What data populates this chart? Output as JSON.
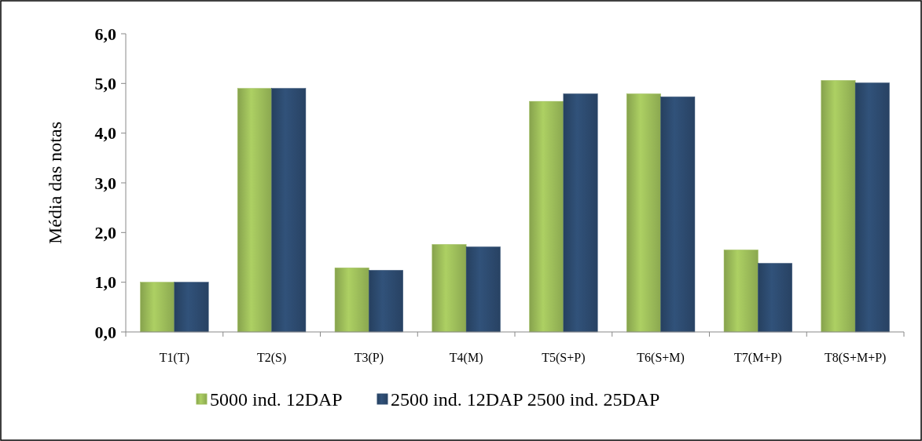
{
  "chart_data": {
    "type": "bar",
    "ylabel": "Média das notas",
    "categories": [
      "T1(T)",
      "T2(S)",
      "T3(P)",
      "T4(M)",
      "T5(S+P)",
      "T6(S+M)",
      "T7(M+P)",
      "T8(S+M+P)"
    ],
    "series": [
      {
        "name": "5000 ind. 12DAP",
        "color": "#9bbb59",
        "values": [
          1.0,
          4.9,
          1.29,
          1.76,
          4.64,
          4.79,
          1.65,
          5.06
        ]
      },
      {
        "name": "2500 ind. 12DAP 2500 ind. 25DAP",
        "color": "#2c4a6e",
        "values": [
          1.0,
          4.9,
          1.24,
          1.71,
          4.79,
          4.73,
          1.38,
          5.01
        ]
      }
    ],
    "ylim": [
      0,
      6
    ],
    "yticks": [
      {
        "value": 0,
        "label": "0,0"
      },
      {
        "value": 1,
        "label": "1,0"
      },
      {
        "value": 2,
        "label": "2,0"
      },
      {
        "value": 3,
        "label": "3,0"
      },
      {
        "value": 4,
        "label": "4,0"
      },
      {
        "value": 5,
        "label": "5,0"
      },
      {
        "value": 6,
        "label": "6,0"
      }
    ],
    "grid": false,
    "legend": "bottom"
  }
}
